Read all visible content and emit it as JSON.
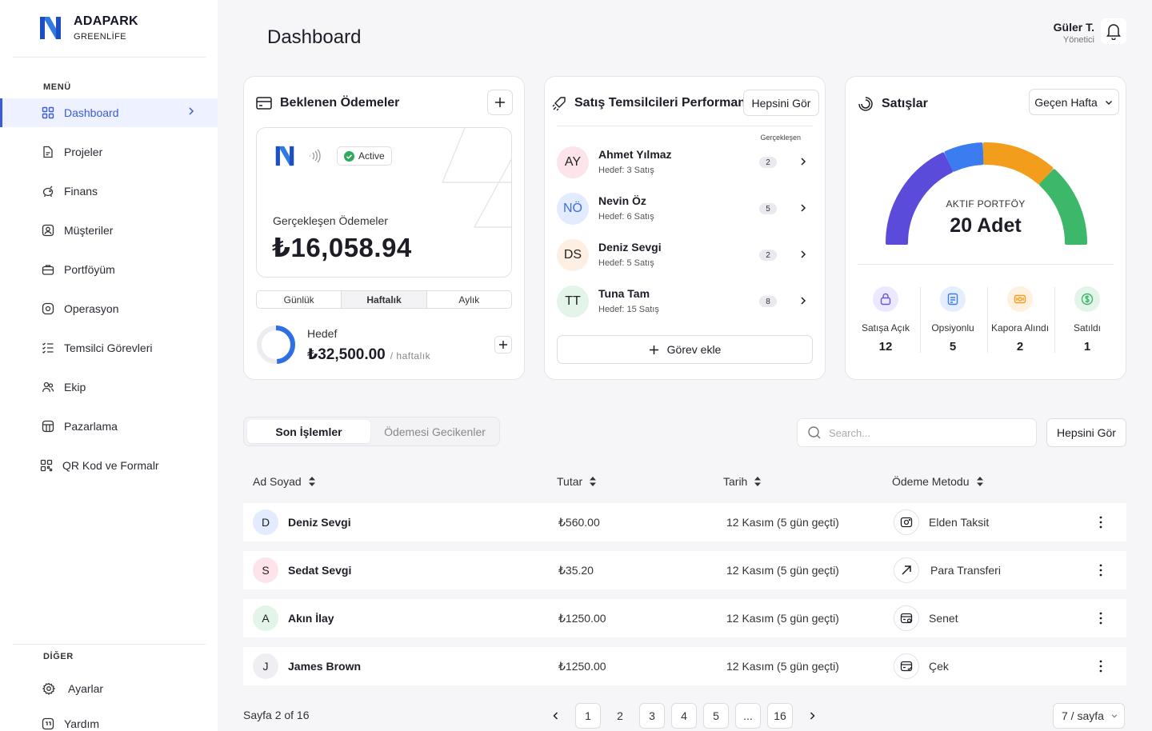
{
  "brand": {
    "name": "ADAPARK",
    "sub": "GREENLİFE"
  },
  "sidebar": {
    "menu_label": "MENÜ",
    "items": [
      {
        "label": "Dashboard",
        "icon": "grid-icon",
        "active": true
      },
      {
        "label": "Projeler",
        "icon": "file-icon"
      },
      {
        "label": "Finans",
        "icon": "piggy-bank-icon"
      },
      {
        "label": "Müşteriler",
        "icon": "user-square-icon"
      },
      {
        "label": "Portföyüm",
        "icon": "briefcase-icon"
      },
      {
        "label": "Operasyon",
        "icon": "target-icon"
      },
      {
        "label": "Temsilci Görevleri",
        "icon": "checklist-icon"
      },
      {
        "label": "Ekip",
        "icon": "team-icon"
      },
      {
        "label": "Pazarlama",
        "icon": "store-icon"
      },
      {
        "label": "QR Kod ve Formalr",
        "icon": "qr-icon"
      }
    ],
    "other_label": "DİĞER",
    "other_items": [
      {
        "label": "Ayarlar",
        "icon": "gear-icon"
      },
      {
        "label": "Yardım",
        "icon": "help-icon"
      }
    ]
  },
  "header": {
    "title": "Dashboard",
    "user_name": "Güler T.",
    "user_role": "Yönetici"
  },
  "payments": {
    "title": "Beklenen Ödemeler",
    "status": "Active",
    "label": "Gerçekleşen Ödemeler",
    "amount": "₺16,058.94",
    "tabs": [
      "Günlük",
      "Haftalık",
      "Aylık"
    ],
    "selected_tab": "Haftalık",
    "goal_label": "Hedef",
    "goal_amount": "₺32,500.00",
    "goal_unit": "/ haftalık",
    "goal_progress": 0.49
  },
  "performance": {
    "title": "Satış Temsilcileri Performansı",
    "see_all": "Hepsini Gör",
    "column": "Gerçekleşen",
    "reps": [
      {
        "initials": "AY",
        "name": "Ahmet Yılmaz",
        "target": "Hedef: 3 Satış",
        "done": "2",
        "color": "#fde4ea",
        "text": "#222"
      },
      {
        "initials": "NÖ",
        "name": "Nevin Öz",
        "target": "Hedef: 6 Satış",
        "done": "5",
        "color": "#e3ebff",
        "text": "#3b6fd8"
      },
      {
        "initials": "DS",
        "name": "Deniz Sevgi",
        "target": "Hedef: 5 Satış",
        "done": "2",
        "color": "#fdf0e2",
        "text": "#222"
      },
      {
        "initials": "TT",
        "name": "Tuna Tam",
        "target": "Hedef: 15 Satış",
        "done": "8",
        "color": "#e3f4e8",
        "text": "#222"
      }
    ],
    "add_task": "Görev ekle"
  },
  "sales": {
    "title": "Satışlar",
    "period": "Geçen Hafta",
    "gauge_label": "AKTIF PORTFÖY",
    "gauge_value": "20 Adet",
    "gauge_colors": [
      "#5b4bdb",
      "#3b7cf0",
      "#f29d1b",
      "#3db86a"
    ],
    "stats": [
      {
        "label": "Satışa Açık",
        "value": "12",
        "icon": "lock-icon",
        "bg": "#ece8ff",
        "fg": "#6a55d8"
      },
      {
        "label": "Opsiyonlu",
        "value": "5",
        "icon": "document-icon",
        "bg": "#e5eeff",
        "fg": "#3b7cf0"
      },
      {
        "label": "Kapora Alındı",
        "value": "2",
        "icon": "cash-icon",
        "bg": "#fff1e0",
        "fg": "#f29d1b"
      },
      {
        "label": "Satıldı",
        "value": "1",
        "icon": "dollar-icon",
        "bg": "#e3f5e9",
        "fg": "#3db86a"
      }
    ]
  },
  "transactions": {
    "tabs": [
      "Son İşlemler",
      "Ödemesi Gecikenler"
    ],
    "search_placeholder": "Search...",
    "see_all": "Hepsini Gör",
    "columns": [
      "Ad Soyad",
      "Tutar",
      "Tarih",
      "Ödeme Metodu"
    ],
    "rows": [
      {
        "initial": "D",
        "name": "Deniz Sevgi",
        "amount": "₺560.00",
        "date": "12 Kasım (5 gün geçti)",
        "method": "Elden Taksit",
        "icon": "cash-register-icon",
        "color": "#e3ebff"
      },
      {
        "initial": "S",
        "name": "Sedat Sevgi",
        "amount": "₺35.20",
        "date": "12 Kasım (5 gün geçti)",
        "method": "Para Transferi",
        "icon": "arrow-up-right-icon",
        "color": "#fde4ea"
      },
      {
        "initial": "A",
        "name": "Akın İlay",
        "amount": "₺1250.00",
        "date": "12 Kasım (5 gün geçti)",
        "method": "Senet",
        "icon": "bill-icon",
        "color": "#e3f4e8"
      },
      {
        "initial": "J",
        "name": "James Brown",
        "amount": "₺1250.00",
        "date": "12 Kasım (5 gün geçti)",
        "method": "Çek",
        "icon": "cheque-icon",
        "color": "#efeff3"
      }
    ],
    "page_info": "Sayfa 2 of 16",
    "pages": [
      "1",
      "2",
      "3",
      "4",
      "5",
      "...",
      "16"
    ],
    "per_page": "7 / sayfa"
  }
}
